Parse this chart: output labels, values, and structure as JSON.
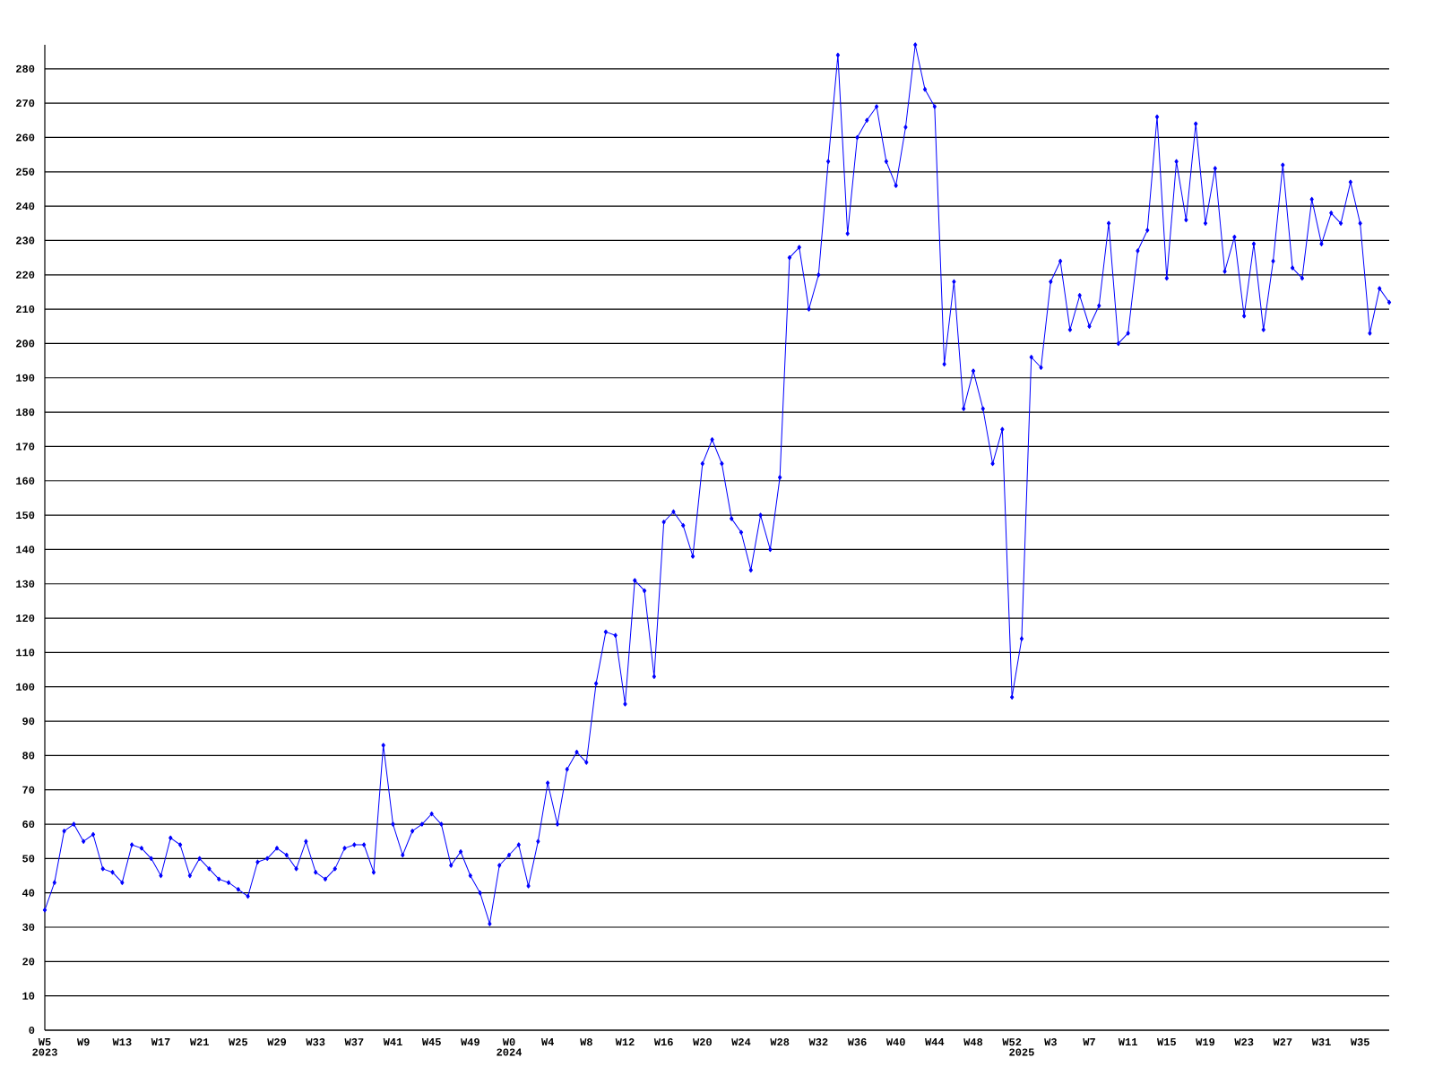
{
  "chart_data": {
    "type": "line",
    "categories": [
      "W5",
      null,
      null,
      null,
      "W9",
      null,
      null,
      null,
      "W13",
      null,
      null,
      null,
      "W17",
      null,
      null,
      null,
      "W21",
      null,
      null,
      null,
      "W25",
      null,
      null,
      null,
      "W29",
      null,
      null,
      null,
      "W33",
      null,
      null,
      null,
      "W37",
      null,
      null,
      null,
      "W41",
      null,
      null,
      null,
      "W45",
      null,
      null,
      null,
      "W49",
      null,
      null,
      null,
      "W0",
      null,
      null,
      null,
      "W4",
      null,
      null,
      null,
      "W8",
      null,
      null,
      null,
      "W12",
      null,
      null,
      null,
      "W16",
      null,
      null,
      null,
      "W20",
      null,
      null,
      null,
      "W24",
      null,
      null,
      null,
      "W28",
      null,
      null,
      null,
      "W32",
      null,
      null,
      null,
      "W36",
      null,
      null,
      null,
      "W40",
      null,
      null,
      null,
      "W44",
      null,
      null,
      null,
      "W48",
      null,
      null,
      null,
      "W52",
      null,
      null,
      null,
      "W3",
      null,
      null,
      null,
      "W7",
      null,
      null,
      null,
      "W11",
      null,
      null,
      null,
      "W15",
      null,
      null,
      null,
      "W19",
      null,
      null,
      null,
      "W23",
      null,
      null,
      null,
      "W27",
      null,
      null,
      null,
      "W31",
      null,
      null,
      null,
      "W35",
      null,
      null,
      null
    ],
    "values": [
      35,
      43,
      58,
      60,
      55,
      57,
      47,
      46,
      43,
      54,
      53,
      50,
      45,
      56,
      54,
      45,
      50,
      47,
      44,
      43,
      41,
      39,
      49,
      50,
      53,
      51,
      47,
      55,
      46,
      44,
      47,
      53,
      54,
      54,
      46,
      83,
      60,
      51,
      58,
      60,
      63,
      60,
      48,
      52,
      45,
      40,
      31,
      48,
      51,
      54,
      42,
      55,
      72,
      60,
      76,
      81,
      78,
      101,
      116,
      115,
      95,
      131,
      128,
      103,
      148,
      151,
      147,
      138,
      165,
      172,
      165,
      149,
      145,
      134,
      150,
      140,
      161,
      225,
      228,
      210,
      220,
      253,
      284,
      232,
      260,
      265,
      269,
      253,
      246,
      263,
      287,
      274,
      269,
      194,
      218,
      181,
      192,
      181,
      165,
      175,
      97,
      114,
      196,
      193,
      218,
      224,
      204,
      214,
      205,
      211,
      235,
      200,
      203,
      227,
      233,
      266,
      219,
      253,
      236,
      264,
      235,
      251,
      221,
      231,
      208,
      229,
      204,
      224,
      252,
      222,
      219,
      242,
      229,
      238,
      235,
      247,
      235,
      203,
      216,
      212
    ],
    "color": "#0000ff",
    "ylim": [
      0,
      287
    ],
    "yticks": [
      0,
      10,
      20,
      30,
      40,
      50,
      60,
      70,
      80,
      90,
      100,
      110,
      120,
      130,
      140,
      150,
      160,
      170,
      180,
      190,
      200,
      210,
      220,
      230,
      240,
      250,
      260,
      270,
      280
    ],
    "grid": "y",
    "marker": "diamond",
    "annotations": [
      "2023",
      "2024",
      "2025"
    ]
  }
}
